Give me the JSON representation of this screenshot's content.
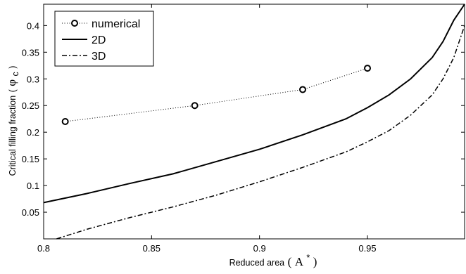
{
  "chart_data": {
    "type": "line",
    "xlabel": "Reduced area",
    "xlabel_symbol": "A",
    "xlabel_symbol_sup": "*",
    "ylabel": "Critical filling fraction",
    "ylabel_symbol": "φ",
    "ylabel_symbol_sub": "c",
    "xlim": [
      0.8,
      0.995
    ],
    "ylim": [
      0,
      0.44
    ],
    "xticks": [
      "0.8",
      "0.85",
      "0.9",
      "0.95"
    ],
    "xtick_values": [
      0.8,
      0.85,
      0.9,
      0.95
    ],
    "yticks": [
      "0.05",
      "0.1",
      "0.15",
      "0.2",
      "0.25",
      "0.3",
      "0.35",
      "0.4"
    ],
    "ytick_values": [
      0.05,
      0.1,
      0.15,
      0.2,
      0.25,
      0.3,
      0.35,
      0.4
    ],
    "grid": false,
    "legend_position": "top-left",
    "series": [
      {
        "name": "numerical",
        "style": "dotted-circles",
        "color": "#000000",
        "x": [
          0.81,
          0.87,
          0.92,
          0.95
        ],
        "y": [
          0.22,
          0.25,
          0.28,
          0.32
        ]
      },
      {
        "name": "2D",
        "style": "solid",
        "color": "#000000",
        "x": [
          0.8,
          0.82,
          0.84,
          0.86,
          0.88,
          0.9,
          0.92,
          0.94,
          0.95,
          0.96,
          0.97,
          0.98,
          0.985,
          0.99,
          0.995
        ],
        "y": [
          0.068,
          0.085,
          0.104,
          0.122,
          0.145,
          0.168,
          0.195,
          0.225,
          0.246,
          0.27,
          0.3,
          0.34,
          0.37,
          0.41,
          0.44
        ]
      },
      {
        "name": "3D",
        "style": "dash-dot",
        "color": "#000000",
        "x": [
          0.806,
          0.82,
          0.84,
          0.86,
          0.88,
          0.9,
          0.92,
          0.94,
          0.95,
          0.96,
          0.97,
          0.98,
          0.985,
          0.99,
          0.995
        ],
        "y": [
          0.0,
          0.018,
          0.04,
          0.06,
          0.082,
          0.107,
          0.134,
          0.163,
          0.182,
          0.203,
          0.232,
          0.27,
          0.3,
          0.34,
          0.4
        ]
      }
    ]
  }
}
